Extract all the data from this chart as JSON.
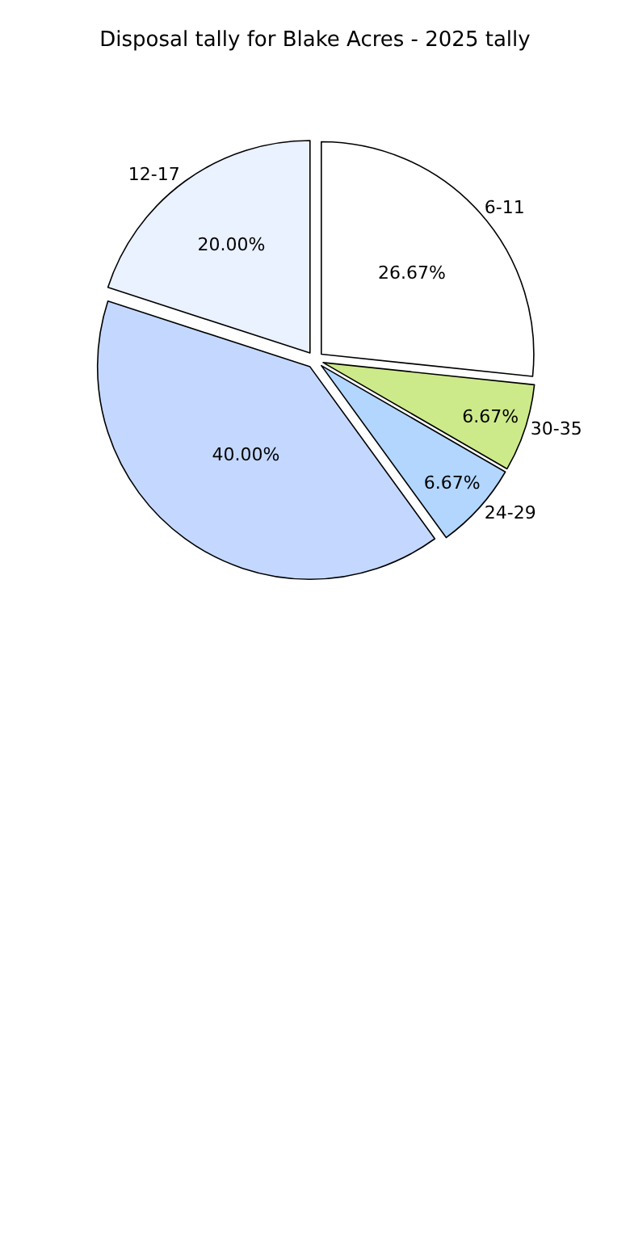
{
  "chart_data": {
    "type": "pie",
    "title": "Disposal tally for Blake Acres - 2025 tally",
    "categories": [
      "6-11",
      "30-35",
      "24-29",
      null,
      "12-17"
    ],
    "values": [
      26.67,
      6.67,
      6.67,
      40,
      20
    ],
    "colors": [
      "#ffffff",
      "#cdea8a",
      "#b3d6ff",
      "#c4d8ff",
      "#eaf1ff"
    ],
    "value_labels": [
      "26.67%",
      "6.67%",
      "6.67%",
      "40.00%",
      "20.00%"
    ]
  }
}
